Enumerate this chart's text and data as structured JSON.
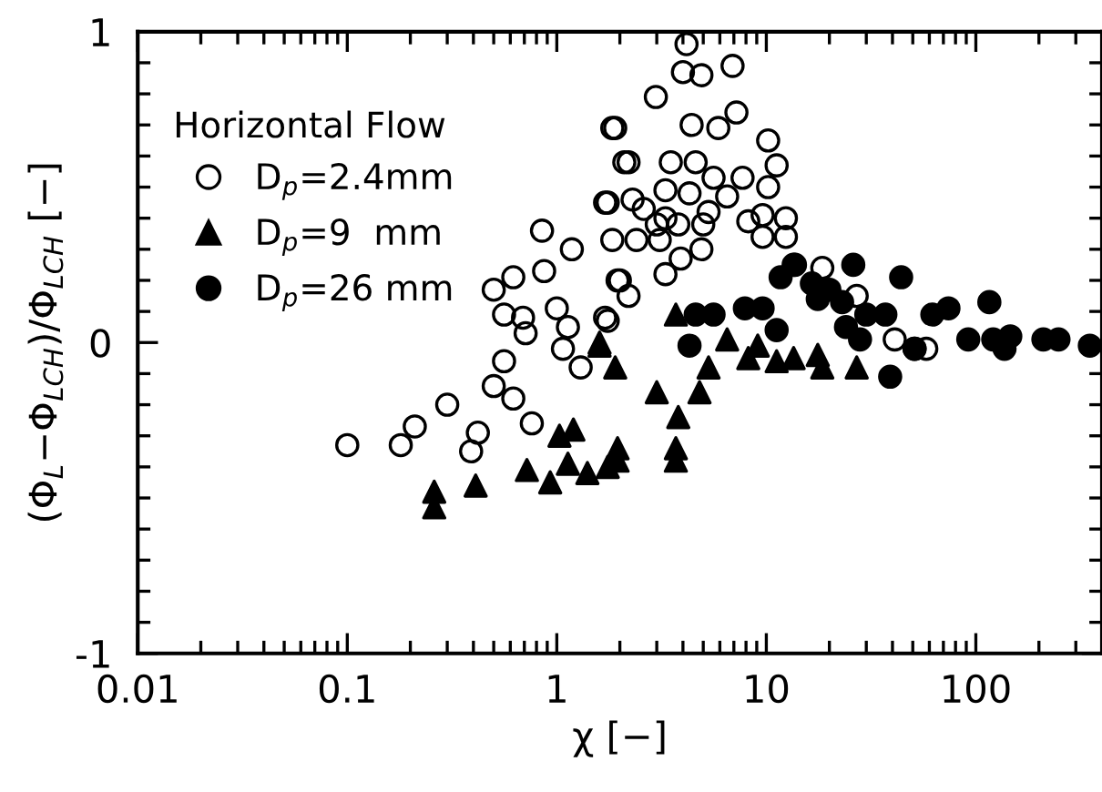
{
  "chart_data": {
    "type": "scatter",
    "xlabel": "χ [−]",
    "ylabel": "(Φ$_{L}$−Φ$_{LCH}$)/Φ$_{LCH}$ [−]",
    "legend_title": "Horizontal Flow",
    "log": "x",
    "legend": "top left",
    "grid": false,
    "xlim": [
      0.01,
      400
    ],
    "xticks": [
      0.01,
      0.1,
      1,
      10,
      100
    ],
    "ylim": [
      -1,
      1
    ],
    "yticks": [
      -1,
      {
        "value": -0.9,
        "label": null
      },
      {
        "value": -0.8,
        "label": null
      },
      {
        "value": -0.7,
        "label": null
      },
      {
        "value": -0.6,
        "label": null
      },
      {
        "value": -0.5,
        "label": null
      },
      {
        "value": -0.4,
        "label": null
      },
      {
        "value": -0.3,
        "label": null
      },
      {
        "value": -0.2,
        "label": null
      },
      {
        "value": -0.1,
        "label": null
      },
      0,
      {
        "value": 0.1,
        "label": null
      },
      {
        "value": 0.2,
        "label": null
      },
      {
        "value": 0.3,
        "label": null
      },
      {
        "value": 0.4,
        "label": null
      },
      {
        "value": 0.5,
        "label": null
      },
      {
        "value": 0.6,
        "label": null
      },
      {
        "value": 0.7,
        "label": null
      },
      {
        "value": 0.8,
        "label": null
      },
      {
        "value": 0.9,
        "label": null
      },
      1
    ],
    "series": [
      {
        "name": "D$_{p}$=2.4mm",
        "color": "#000000",
        "marker": "circle",
        "x": [
          0.1,
          0.18,
          0.21,
          0.3,
          0.42,
          0.39,
          0.5,
          0.56,
          0.62,
          0.76,
          0.5,
          0.56,
          0.62,
          0.69,
          0.71,
          0.85,
          0.87,
          1.18,
          1.0,
          1.07,
          1.13,
          1.3,
          1.84,
          2.1,
          1.75,
          1.84,
          1.95,
          1.75,
          4.16,
          4.0,
          4.9,
          6.9,
          2.97,
          7.2,
          4.4,
          5.9,
          1.9,
          10.2,
          2.2,
          3.5,
          4.6,
          11.2,
          5.6,
          7.7,
          3.3,
          10.2,
          4.3,
          6.5,
          2.3,
          1.7,
          2.6,
          5.3,
          3.3,
          3.0,
          3.8,
          5.0,
          8.2,
          9.6,
          12.4,
          2.4,
          3.1,
          9.6,
          12.4,
          4.9,
          3.9,
          3.3,
          2.0,
          2.2,
          1.7,
          13.5,
          18.5,
          41,
          51,
          58,
          27
        ],
        "values": [
          -0.33,
          -0.33,
          -0.27,
          -0.2,
          -0.29,
          -0.35,
          -0.14,
          -0.06,
          -0.18,
          -0.26,
          0.17,
          0.09,
          0.21,
          0.08,
          0.03,
          0.36,
          0.23,
          0.3,
          0.11,
          -0.02,
          0.05,
          -0.08,
          0.69,
          0.58,
          0.45,
          0.33,
          0.2,
          0.07,
          0.96,
          0.87,
          0.86,
          0.89,
          0.79,
          0.74,
          0.7,
          0.69,
          0.69,
          0.65,
          0.58,
          0.58,
          0.58,
          0.57,
          0.53,
          0.53,
          0.49,
          0.5,
          0.48,
          0.47,
          0.46,
          0.45,
          0.43,
          0.42,
          0.4,
          0.38,
          0.38,
          0.38,
          0.39,
          0.41,
          0.4,
          0.33,
          0.33,
          0.34,
          0.34,
          0.3,
          0.27,
          0.22,
          0.2,
          0.15,
          0.08,
          0.25,
          0.24,
          0.01,
          -0.02,
          -0.02,
          0.15
        ]
      },
      {
        "name": "D$_{p}$=9  mm",
        "color": "#000000",
        "marker": "triangle",
        "x": [
          0.26,
          0.26,
          0.41,
          0.72,
          0.93,
          1.03,
          1.2,
          1.13,
          1.4,
          1.95,
          1.75,
          1.6,
          1.9,
          3.0,
          4.8,
          3.8,
          1.95,
          3.7,
          3.7,
          3.7,
          5.3,
          6.5,
          8.2,
          9.1,
          11.2,
          13.5,
          17.6,
          18.5,
          27,
          1.6
        ],
        "values": [
          -0.48,
          -0.53,
          -0.46,
          -0.41,
          -0.45,
          -0.3,
          -0.28,
          -0.39,
          -0.42,
          -0.34,
          -0.4,
          0.0,
          -0.08,
          -0.16,
          -0.16,
          -0.24,
          -0.38,
          -0.34,
          -0.38,
          0.09,
          -0.08,
          0.01,
          -0.05,
          -0.01,
          -0.06,
          -0.05,
          -0.04,
          -0.08,
          -0.08,
          -0.01
        ]
      },
      {
        "name": "D$_{p}$=26 mm",
        "color": "#000000",
        "marker": "circle",
        "x": [
          4.6,
          5.6,
          7.9,
          9.6,
          11.2,
          13.7,
          26,
          44,
          16.5,
          20,
          23,
          30,
          37,
          24,
          62,
          74,
          116,
          92,
          121,
          146,
          137,
          210,
          248,
          350,
          39,
          51,
          28,
          11.7,
          17.6,
          4.3
        ],
        "values": [
          0.09,
          0.09,
          0.11,
          0.11,
          0.04,
          0.25,
          0.25,
          0.21,
          0.19,
          0.17,
          0.13,
          0.09,
          0.09,
          0.05,
          0.09,
          0.11,
          0.13,
          0.01,
          0.01,
          0.02,
          -0.02,
          0.01,
          0.01,
          -0.01,
          -0.11,
          -0.02,
          0.01,
          0.21,
          0.14,
          -0.01
        ]
      }
    ]
  }
}
